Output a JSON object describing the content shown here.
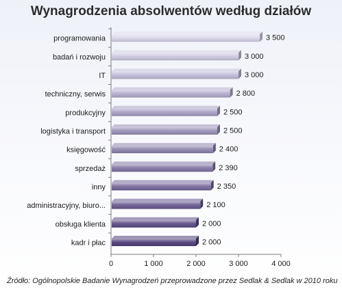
{
  "chart_data": {
    "type": "bar",
    "orientation": "horizontal",
    "title": "Wynagrodzenia absolwentów według działów",
    "categories": [
      "programowania",
      "badań i rozwoju",
      "IT",
      "techniczny, serwis",
      "produkcyjny",
      "logistyka i transport",
      "księgowość",
      "sprzedaż",
      "inny",
      "administracyjny, biuro...",
      "obsługa klienta",
      "kadr i płac"
    ],
    "values": [
      3500,
      3000,
      3000,
      2800,
      2500,
      2500,
      2400,
      2390,
      2350,
      2100,
      2000,
      2000
    ],
    "value_labels": [
      "3 500",
      "3 000",
      "3 000",
      "2 800",
      "2 500",
      "2 500",
      "2 400",
      "2 390",
      "2 350",
      "2 100",
      "2 000",
      "2 000"
    ],
    "xlim": [
      0,
      4000
    ],
    "x_ticks": [
      0,
      1000,
      2000,
      3000,
      4000
    ],
    "x_tick_labels": [
      "0",
      "1 000",
      "2 000",
      "3 000",
      "4 000"
    ],
    "grid": false,
    "legend": "none",
    "colors": {
      "bar_top": "#d9d6ec",
      "bar_bottom": "#4b3a78"
    },
    "source": "Źródło: Ogólnopolskie Badanie Wynagrodzeń przeprowadzone przez Sedlak & Sedlak w 2010 roku"
  }
}
